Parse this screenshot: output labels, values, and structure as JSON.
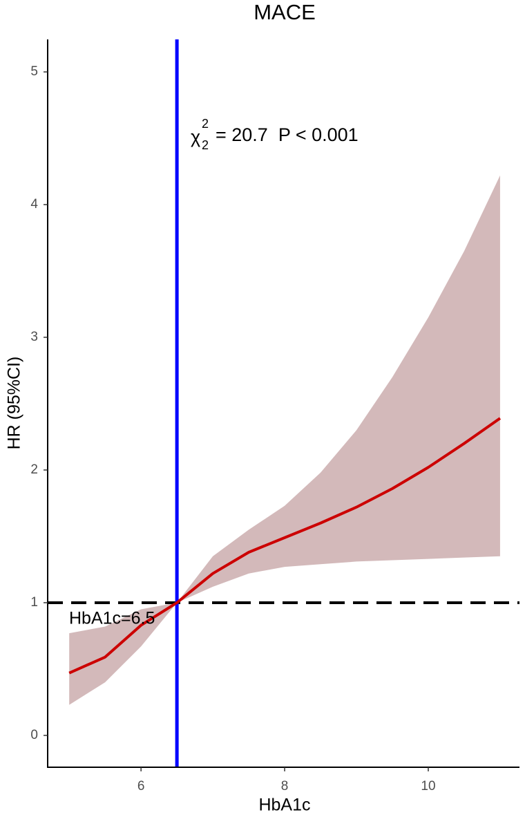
{
  "chart_data": {
    "type": "line",
    "title": "MACE",
    "x_label": "HbA1c",
    "y_label": "HR (95%CI)",
    "x": [
      5,
      5.5,
      6,
      6.5,
      7,
      7.5,
      8,
      8.5,
      9,
      9.5,
      10,
      10.5,
      11
    ],
    "values": [
      0.47,
      0.59,
      0.83,
      1,
      1.22,
      1.38,
      1.49,
      1.6,
      1.72,
      1.86,
      2.02,
      2.2,
      2.39
    ],
    "lower": [
      0.23,
      0.4,
      0.67,
      1,
      1.12,
      1.22,
      1.27,
      1.29,
      1.31,
      1.32,
      1.33,
      1.34,
      1.35
    ],
    "upper": [
      0.77,
      0.82,
      0.95,
      1,
      1.35,
      1.55,
      1.73,
      1.98,
      2.3,
      2.7,
      3.15,
      3.65,
      4.22
    ],
    "color": "#cc0000",
    "band_color": "#d3b9ba",
    "xlim": [
      4.7,
      11.27
    ],
    "ylim": [
      -0.24,
      5.245
    ],
    "xticks": [
      6,
      8,
      10
    ],
    "yticks": [
      0,
      1,
      2,
      3,
      4,
      5
    ],
    "grid": false,
    "vline": {
      "x": 6.5,
      "color": "#0000ff"
    },
    "hline": {
      "y": 1,
      "color": "#000000"
    },
    "reference_label": "HbA1c=6.5",
    "stat_annotation": {
      "symbol": "χ",
      "superscript": "2",
      "subscript": "2",
      "text": "= 20.7  P < 0.001"
    }
  }
}
